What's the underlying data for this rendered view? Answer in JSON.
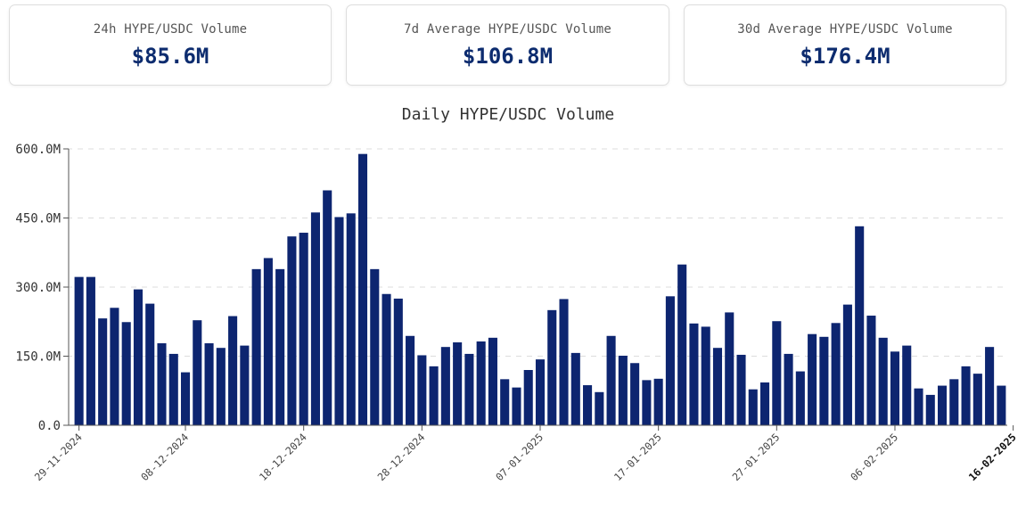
{
  "stats": [
    {
      "label": "24h HYPE/USDC Volume",
      "value": "$85.6M"
    },
    {
      "label": "7d Average HYPE/USDC Volume",
      "value": "$106.8M"
    },
    {
      "label": "30d Average HYPE/USDC Volume",
      "value": "$176.4M"
    }
  ],
  "chart_data": {
    "type": "bar",
    "title": "Daily HYPE/USDC Volume",
    "xlabel": "",
    "ylabel": "",
    "ylim": [
      0,
      600
    ],
    "y_unit": "M",
    "y_ticks": [
      0,
      150,
      300,
      450,
      600
    ],
    "y_tick_labels": [
      "0.0",
      "150.0M",
      "300.0M",
      "450.0M",
      "600.0M"
    ],
    "grid": true,
    "bar_color": "#0d2570",
    "start_date": "2024-11-29",
    "x_tick_labels": [
      {
        "label": "29-11-2024",
        "date": "2024-11-29"
      },
      {
        "label": "08-12-2024",
        "date": "2024-12-08"
      },
      {
        "label": "18-12-2024",
        "date": "2024-12-18"
      },
      {
        "label": "28-12-2024",
        "date": "2024-12-28"
      },
      {
        "label": "07-01-2025",
        "date": "2025-01-07"
      },
      {
        "label": "17-01-2025",
        "date": "2025-01-17"
      },
      {
        "label": "27-01-2025",
        "date": "2025-01-27"
      },
      {
        "label": "06-02-2025",
        "date": "2025-02-06"
      },
      {
        "label": "16-02-2025",
        "date": "2025-02-16"
      }
    ],
    "values": [
      322,
      322,
      232,
      255,
      224,
      295,
      264,
      178,
      155,
      115,
      228,
      178,
      168,
      237,
      173,
      339,
      363,
      339,
      410,
      418,
      462,
      510,
      452,
      460,
      589,
      339,
      285,
      275,
      194,
      152,
      128,
      170,
      180,
      155,
      182,
      190,
      100,
      82,
      120,
      143,
      250,
      274,
      157,
      87,
      72,
      194,
      151,
      135,
      98,
      101,
      280,
      349,
      221,
      214,
      168,
      245,
      153,
      78,
      93,
      226,
      155,
      117,
      198,
      192,
      222,
      262,
      432,
      238,
      190,
      160,
      173,
      80,
      66,
      86,
      100,
      128,
      112,
      170,
      86
    ]
  }
}
